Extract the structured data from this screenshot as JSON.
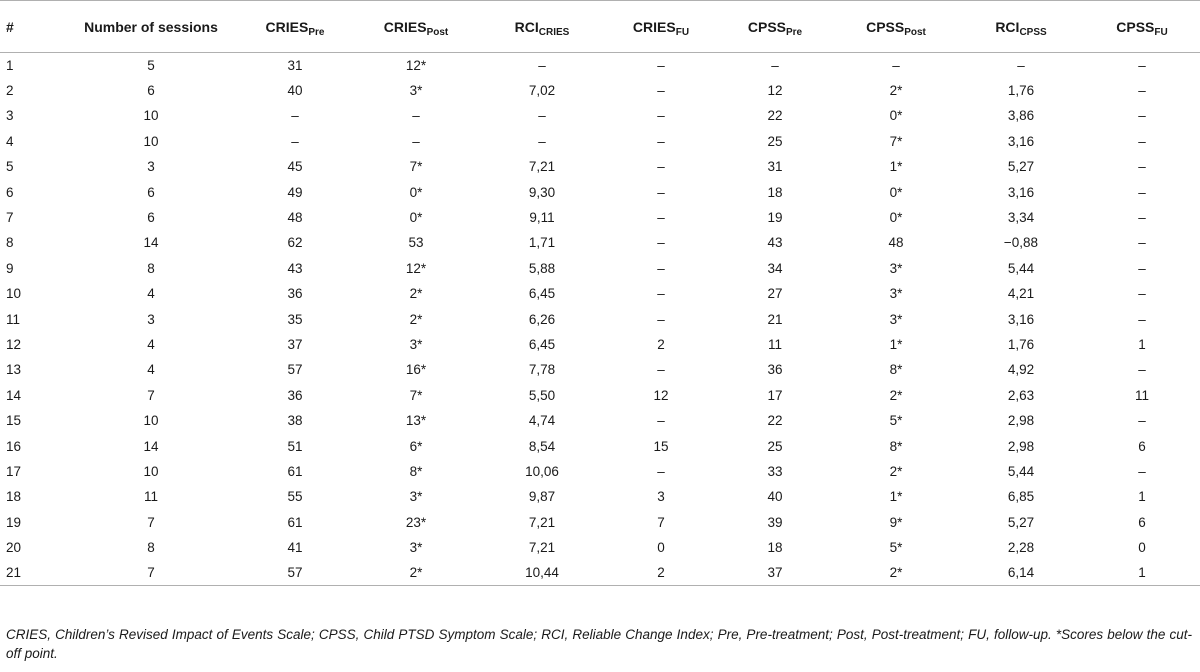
{
  "table": {
    "headers": [
      {
        "base": "#",
        "sub": ""
      },
      {
        "base": "Number of sessions",
        "sub": ""
      },
      {
        "base": "CRIES",
        "sub": "Pre"
      },
      {
        "base": "CRIES",
        "sub": "Post"
      },
      {
        "base": "RCI",
        "sub": "CRIES"
      },
      {
        "base": "CRIES",
        "sub": "FU"
      },
      {
        "base": "CPSS",
        "sub": "Pre"
      },
      {
        "base": "CPSS",
        "sub": "Post"
      },
      {
        "base": "RCI",
        "sub": "CPSS"
      },
      {
        "base": "CPSS",
        "sub": "FU"
      }
    ],
    "rows": [
      [
        "1",
        "5",
        "31",
        "12*",
        "–",
        "–",
        "–",
        "–",
        "–",
        "–"
      ],
      [
        "2",
        "6",
        "40",
        "3*",
        "7,02",
        "–",
        "12",
        "2*",
        "1,76",
        "–"
      ],
      [
        "3",
        "10",
        "–",
        "–",
        "–",
        "–",
        "22",
        "0*",
        "3,86",
        "–"
      ],
      [
        "4",
        "10",
        "–",
        "–",
        "–",
        "–",
        "25",
        "7*",
        "3,16",
        "–"
      ],
      [
        "5",
        "3",
        "45",
        "7*",
        "7,21",
        "–",
        "31",
        "1*",
        "5,27",
        "–"
      ],
      [
        "6",
        "6",
        "49",
        "0*",
        "9,30",
        "–",
        "18",
        "0*",
        "3,16",
        "–"
      ],
      [
        "7",
        "6",
        "48",
        "0*",
        "9,11",
        "–",
        "19",
        "0*",
        "3,34",
        "–"
      ],
      [
        "8",
        "14",
        "62",
        "53",
        "1,71",
        "–",
        "43",
        "48",
        "−0,88",
        "–"
      ],
      [
        "9",
        "8",
        "43",
        "12*",
        "5,88",
        "–",
        "34",
        "3*",
        "5,44",
        "–"
      ],
      [
        "10",
        "4",
        "36",
        "2*",
        "6,45",
        "–",
        "27",
        "3*",
        "4,21",
        "–"
      ],
      [
        "11",
        "3",
        "35",
        "2*",
        "6,26",
        "–",
        "21",
        "3*",
        "3,16",
        "–"
      ],
      [
        "12",
        "4",
        "37",
        "3*",
        "6,45",
        "2",
        "11",
        "1*",
        "1,76",
        "1"
      ],
      [
        "13",
        "4",
        "57",
        "16*",
        "7,78",
        "–",
        "36",
        "8*",
        "4,92",
        "–"
      ],
      [
        "14",
        "7",
        "36",
        "7*",
        "5,50",
        "12",
        "17",
        "2*",
        "2,63",
        "11"
      ],
      [
        "15",
        "10",
        "38",
        "13*",
        "4,74",
        "–",
        "22",
        "5*",
        "2,98",
        "–"
      ],
      [
        "16",
        "14",
        "51",
        "6*",
        "8,54",
        "15",
        "25",
        "8*",
        "2,98",
        "6"
      ],
      [
        "17",
        "10",
        "61",
        "8*",
        "10,06",
        "–",
        "33",
        "2*",
        "5,44",
        "–"
      ],
      [
        "18",
        "11",
        "55",
        "3*",
        "9,87",
        "3",
        "40",
        "1*",
        "6,85",
        "1"
      ],
      [
        "19",
        "7",
        "61",
        "23*",
        "7,21",
        "7",
        "39",
        "9*",
        "5,27",
        "6"
      ],
      [
        "20",
        "8",
        "41",
        "3*",
        "7,21",
        "0",
        "18",
        "5*",
        "2,28",
        "0"
      ],
      [
        "21",
        "7",
        "57",
        "2*",
        "10,44",
        "2",
        "37",
        "2*",
        "6,14",
        "1"
      ]
    ]
  },
  "footnote": "CRIES, Children’s Revised Impact of Events Scale; CPSS, Child PTSD Symptom Scale; RCI, Reliable Change Index; Pre, Pre-treatment; Post, Post-treatment; FU, follow-up. *Scores below the cut-off point."
}
